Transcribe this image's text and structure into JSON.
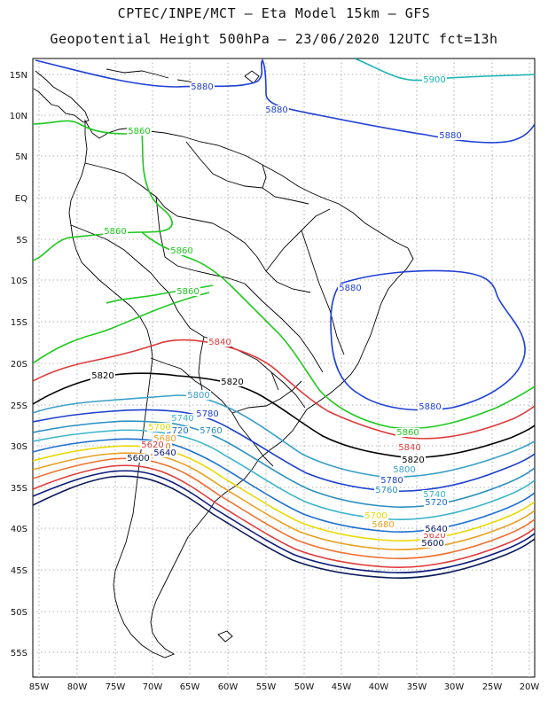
{
  "header": {
    "title_line1": "CPTEC/INPE/MCT –  Eta Model 15km – GFS",
    "title_line2": "Geopotential Height 500hPa – 23/06/2020 12UTC fct=13h"
  },
  "map": {
    "lat_labels": [
      "15N",
      "10N",
      "5N",
      "EQ",
      "5S",
      "10S",
      "15S",
      "20S",
      "25S",
      "30S",
      "35S",
      "40S",
      "45S",
      "50S",
      "55S"
    ],
    "lon_labels": [
      "85W",
      "80W",
      "75W",
      "70W",
      "65W",
      "60W",
      "55W",
      "50W",
      "45W",
      "40W",
      "35W",
      "30W",
      "25W",
      "20W"
    ],
    "gridlines": true,
    "contour_interval": 20,
    "contours": [
      {
        "value": "5900",
        "color": "#17b3b3",
        "labels": [
          "5900"
        ]
      },
      {
        "value": "5880",
        "color": "#1f3fd6",
        "labels": [
          "5880",
          "5880",
          "5880",
          "5880",
          "5880"
        ]
      },
      {
        "value": "5860",
        "color": "#1ec81e",
        "labels": [
          "5860",
          "5860",
          "5860",
          "5860",
          "5860"
        ]
      },
      {
        "value": "5840",
        "color": "#e03a3a",
        "labels": [
          "5840",
          "5840"
        ]
      },
      {
        "value": "5820",
        "color": "#000000",
        "labels": [
          "5820",
          "5820",
          "5820"
        ]
      },
      {
        "value": "5800",
        "color": "#3a9fc9",
        "labels": [
          "5800",
          "5800"
        ]
      },
      {
        "value": "5780",
        "color": "#1c3fcf",
        "labels": [
          "5780",
          "5780"
        ]
      },
      {
        "value": "5760",
        "color": "#2a8fbf",
        "labels": [
          "5760",
          "5760"
        ]
      },
      {
        "value": "5740",
        "color": "#3ab5c9",
        "labels": [
          "5740",
          "5740"
        ]
      },
      {
        "value": "5720",
        "color": "#1a6fcf",
        "labels": [
          "5720",
          "5720"
        ]
      },
      {
        "value": "5700",
        "color": "#e8d800",
        "labels": [
          "5700",
          "5700"
        ]
      },
      {
        "value": "5680",
        "color": "#e8a020",
        "labels": [
          "5680",
          "5680"
        ]
      },
      {
        "value": "5660",
        "color": "#f07030",
        "labels": [
          "5660"
        ]
      },
      {
        "value": "5620",
        "color": "#e03a3a",
        "labels": [
          "5620",
          "5620"
        ]
      },
      {
        "value": "5640",
        "color": "#0a1a7a",
        "labels": [
          "5640",
          "5640"
        ]
      },
      {
        "value": "5600",
        "color": "#0a1a5a",
        "labels": [
          "5600",
          "5600"
        ]
      }
    ]
  }
}
